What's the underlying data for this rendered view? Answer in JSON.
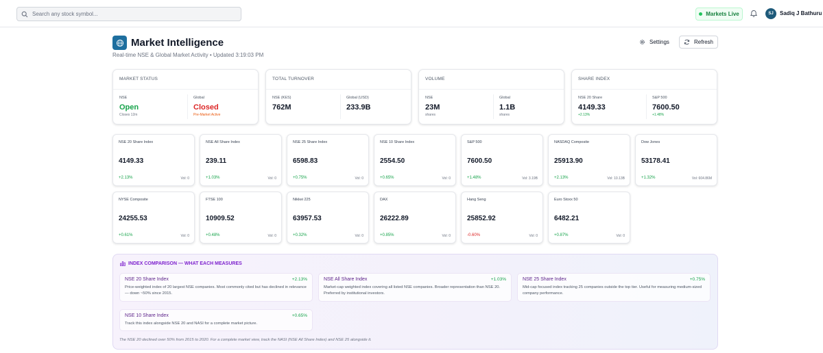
{
  "header": {
    "search_placeholder": "Search any stock symbol...",
    "markets_live": "Markets Live",
    "user_initials": "SJ",
    "user_name": "Sadiq J Bathuru"
  },
  "page": {
    "title": "Market Intelligence",
    "subtitle": "Real-time NSE & Global Market Activity • Updated 3:19:03 PM",
    "settings_label": "Settings",
    "refresh_label": "Refresh"
  },
  "summary": [
    {
      "title": "MARKET STATUS",
      "left": {
        "label": "NSE",
        "value": "Open",
        "sub": "Closes 12m"
      },
      "right": {
        "label": "Global",
        "value": "Closed",
        "sub": "Pre-Market Active"
      }
    },
    {
      "title": "TOTAL TURNOVER",
      "left": {
        "label": "NSE (KES)",
        "value": "762M",
        "sub": ""
      },
      "right": {
        "label": "Global (USD)",
        "value": "233.9B",
        "sub": ""
      }
    },
    {
      "title": "VOLUME",
      "left": {
        "label": "NSE",
        "value": "23M",
        "sub": "shares"
      },
      "right": {
        "label": "Global",
        "value": "1.1B",
        "sub": "shares"
      }
    },
    {
      "title": "SHARE INDEX",
      "left": {
        "label": "NSE 20 Share",
        "value": "4149.33",
        "sub": "+2.13%"
      },
      "right": {
        "label": "S&P 500",
        "value": "7600.50",
        "sub": "+1.48%"
      }
    }
  ],
  "indices": [
    {
      "name": "NSE 20 Share Index",
      "value": "4149.33",
      "change": "+2.13%",
      "vol": "Vol: 0"
    },
    {
      "name": "NSE All Share Index",
      "value": "239.11",
      "change": "+1.03%",
      "vol": "Vol: 0"
    },
    {
      "name": "NSE 25 Share Index",
      "value": "6598.83",
      "change": "+0.75%",
      "vol": "Vol: 0"
    },
    {
      "name": "NSE 10 Share Index",
      "value": "2554.50",
      "change": "+0.65%",
      "vol": "Vol: 0"
    },
    {
      "name": "S&P 500",
      "value": "7600.50",
      "change": "+1.48%",
      "vol": "Vol: 3.19B"
    },
    {
      "name": "NASDAQ Composite",
      "value": "25913.90",
      "change": "+2.13%",
      "vol": "Vol: 10.13B"
    },
    {
      "name": "Dow Jones",
      "value": "53178.41",
      "change": "+1.32%",
      "vol": "Vol: 604.86M"
    },
    {
      "name": "NYSE Composite",
      "value": "24255.53",
      "change": "+0.61%",
      "vol": "Vol: 0"
    },
    {
      "name": "FTSE 100",
      "value": "10909.52",
      "change": "+0.48%",
      "vol": "Vol: 0"
    },
    {
      "name": "Nikkei 225",
      "value": "63957.53",
      "change": "+0.32%",
      "vol": "Vol: 0"
    },
    {
      "name": "DAX",
      "value": "26222.89",
      "change": "+0.85%",
      "vol": "Vol: 0"
    },
    {
      "name": "Hang Seng",
      "value": "25852.92",
      "change": "-0.60%",
      "vol": "Vol: 0"
    },
    {
      "name": "Euro Stoxx 50",
      "value": "6482.21",
      "change": "+0.87%",
      "vol": "Vol: 0"
    }
  ],
  "comparison": {
    "title": "INDEX COMPARISON — WHAT EACH MEASURES",
    "items": [
      {
        "name": "NSE 20 Share Index",
        "change": "+2.13%",
        "desc": "Price-weighted index of 20 largest NSE companies. Most commonly cited but has declined in relevance — down ~50% since 2015."
      },
      {
        "name": "NSE All Share Index",
        "change": "+1.03%",
        "desc": "Market-cap weighted index covering all listed NSE companies. Broader representation than NSE 20. Preferred by institutional investors."
      },
      {
        "name": "NSE 25 Share Index",
        "change": "+0.75%",
        "desc": "Mid-cap focused index tracking 25 companies outside the top tier. Useful for measuring medium-sized company performance."
      },
      {
        "name": "NSE 10 Share Index",
        "change": "+0.65%",
        "desc": "Track this index alongside NSE 20 and NASI for a complete market picture."
      }
    ],
    "note": "The NSE 20 declined over 50% from 2015 to 2020. For a complete market view, track the NASI (NSE All Share Index) and NSE 25 alongside it."
  },
  "colors": {
    "accent": "#1e6f9f",
    "positive": "#16a34a",
    "negative": "#dc2626",
    "live": "#22c55e"
  }
}
